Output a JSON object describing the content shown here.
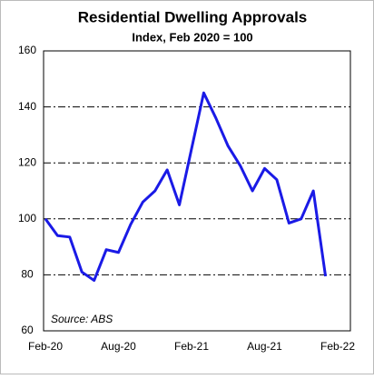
{
  "chart_data": {
    "type": "line",
    "title": "Residential Dwelling Approvals",
    "subtitle": "Index, Feb 2020 = 100",
    "annotation": "Source: ABS",
    "categories": [
      "Feb-20",
      null,
      null,
      null,
      null,
      null,
      "Aug-20",
      null,
      null,
      null,
      null,
      null,
      "Feb-21",
      null,
      null,
      null,
      null,
      null,
      "Aug-21",
      null,
      null,
      null,
      null,
      null,
      "Feb-22"
    ],
    "series": [
      {
        "name": "Residential Dwelling Approvals",
        "color": "#1a1ae6",
        "values": [
          100,
          94,
          93.5,
          81,
          78,
          89,
          88,
          98,
          106,
          110,
          117.5,
          105,
          125,
          145,
          136,
          126,
          119,
          110,
          118,
          114,
          98.5,
          100,
          110,
          79.5,
          null
        ]
      }
    ],
    "ylim": [
      60,
      160
    ],
    "yticks": [
      60,
      80,
      100,
      120,
      140,
      160
    ],
    "grid": true
  }
}
